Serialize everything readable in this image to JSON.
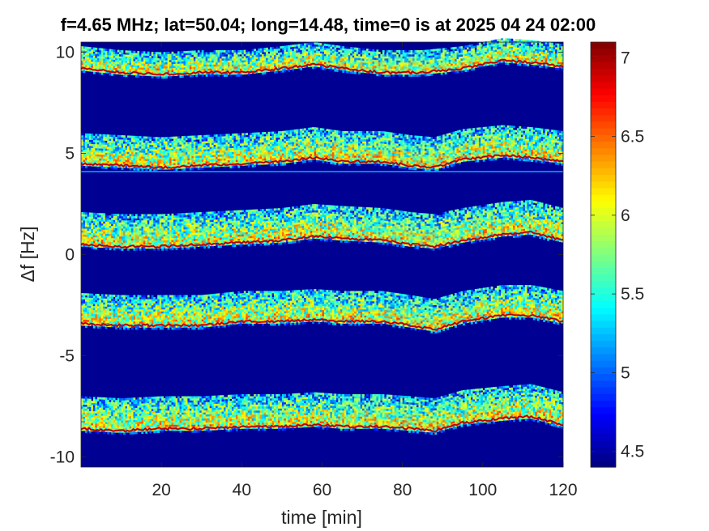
{
  "chart_data": {
    "type": "heatmap",
    "title": "f=4.65 MHz;  lat=50.04; long=14.48, time=0 is at 2025 04 24 02:00",
    "xlabel": "time [min]",
    "ylabel": "Δf [Hz]",
    "xlim": [
      0,
      120
    ],
    "ylim": [
      -10.5,
      10.5
    ],
    "x_ticks": [
      20,
      40,
      60,
      80,
      100,
      120
    ],
    "x_tick_labels": [
      "20",
      "40",
      "60",
      "80",
      "100",
      "120"
    ],
    "y_ticks": [
      -10,
      -5,
      0,
      5,
      10
    ],
    "y_tick_labels": [
      "-10",
      "-5",
      "0",
      "5",
      "10"
    ],
    "colorbar": {
      "colormap": "jet",
      "clim": [
        4.4,
        7.1
      ],
      "ticks": [
        4.5,
        5,
        5.5,
        6,
        6.5,
        7
      ],
      "tick_labels": [
        "4.5",
        "5",
        "5.5",
        "6",
        "6.5",
        "7"
      ]
    },
    "background_level": 4.45,
    "constant_line": {
      "df": 4.1,
      "level": 5.2
    },
    "bands": [
      {
        "name": "",
        "trace": [
          [
            0,
            9.2
          ],
          [
            10,
            9.0
          ],
          [
            20,
            8.9
          ],
          [
            30,
            9.0
          ],
          [
            40,
            9.0
          ],
          [
            50,
            9.2
          ],
          [
            58,
            9.4
          ],
          [
            65,
            9.2
          ],
          [
            75,
            9.0
          ],
          [
            85,
            9.0
          ],
          [
            95,
            9.2
          ],
          [
            105,
            9.6
          ],
          [
            112,
            9.5
          ],
          [
            120,
            9.3
          ]
        ],
        "spread_above": 1.0
      },
      {
        "name": "",
        "trace": [
          [
            0,
            4.5
          ],
          [
            10,
            4.4
          ],
          [
            20,
            4.3
          ],
          [
            30,
            4.4
          ],
          [
            40,
            4.5
          ],
          [
            50,
            4.6
          ],
          [
            58,
            4.8
          ],
          [
            65,
            4.6
          ],
          [
            75,
            4.6
          ],
          [
            82,
            4.4
          ],
          [
            88,
            4.3
          ],
          [
            95,
            4.7
          ],
          [
            105,
            4.9
          ],
          [
            112,
            4.8
          ],
          [
            120,
            4.6
          ]
        ],
        "spread_above": 1.5
      },
      {
        "name": "",
        "trace": [
          [
            0,
            0.5
          ],
          [
            10,
            0.4
          ],
          [
            20,
            0.4
          ],
          [
            30,
            0.5
          ],
          [
            40,
            0.6
          ],
          [
            50,
            0.7
          ],
          [
            58,
            0.9
          ],
          [
            65,
            0.8
          ],
          [
            75,
            0.7
          ],
          [
            82,
            0.5
          ],
          [
            88,
            0.4
          ],
          [
            95,
            0.7
          ],
          [
            105,
            1.0
          ],
          [
            112,
            1.1
          ],
          [
            120,
            0.7
          ]
        ],
        "spread_above": 1.6
      },
      {
        "name": "",
        "trace": [
          [
            0,
            -3.4
          ],
          [
            10,
            -3.5
          ],
          [
            20,
            -3.5
          ],
          [
            30,
            -3.5
          ],
          [
            40,
            -3.3
          ],
          [
            50,
            -3.3
          ],
          [
            58,
            -3.2
          ],
          [
            65,
            -3.3
          ],
          [
            75,
            -3.3
          ],
          [
            82,
            -3.5
          ],
          [
            88,
            -3.7
          ],
          [
            95,
            -3.3
          ],
          [
            105,
            -3.0
          ],
          [
            112,
            -3.0
          ],
          [
            120,
            -3.3
          ]
        ],
        "spread_above": 1.5
      },
      {
        "name": "",
        "trace": [
          [
            0,
            -8.6
          ],
          [
            10,
            -8.7
          ],
          [
            20,
            -8.6
          ],
          [
            30,
            -8.6
          ],
          [
            40,
            -8.5
          ],
          [
            50,
            -8.5
          ],
          [
            58,
            -8.4
          ],
          [
            65,
            -8.5
          ],
          [
            75,
            -8.5
          ],
          [
            82,
            -8.6
          ],
          [
            88,
            -8.7
          ],
          [
            95,
            -8.3
          ],
          [
            105,
            -8.1
          ],
          [
            112,
            -8.0
          ],
          [
            120,
            -8.4
          ]
        ],
        "spread_above": 1.6
      }
    ]
  }
}
